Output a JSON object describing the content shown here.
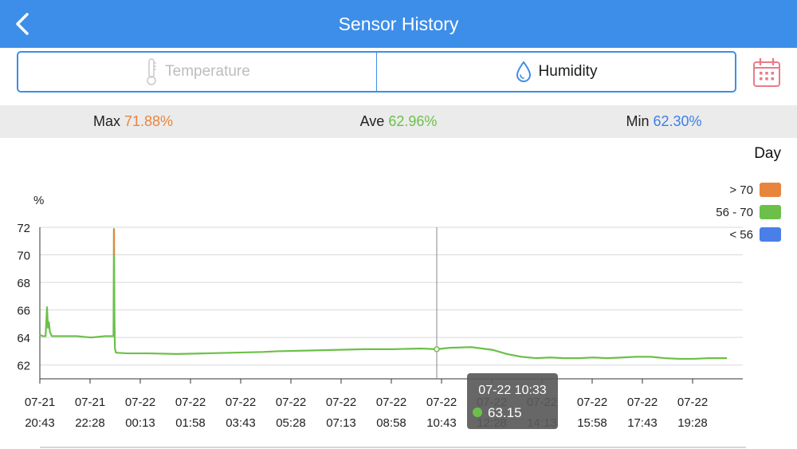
{
  "nav": {
    "title": "Sensor History"
  },
  "tabs": [
    {
      "label": "Temperature",
      "icon": "thermometer-icon",
      "active": false
    },
    {
      "label": "Humidity",
      "icon": "water-drop-icon",
      "active": true
    }
  ],
  "calendar_icon": "calendar-icon",
  "stats": {
    "max": {
      "label": "Max",
      "value": "71.88%",
      "color": "#e8853d"
    },
    "ave": {
      "label": "Ave",
      "value": "62.96%",
      "color": "#6cc04a"
    },
    "min": {
      "label": "Min",
      "value": "62.30%",
      "color": "#3d7fe8"
    }
  },
  "period": "Day",
  "legend": [
    {
      "label": "> 70",
      "color": "#e8853d"
    },
    {
      "label": "56 - 70",
      "color": "#6cc04a"
    },
    {
      "label": "< 56",
      "color": "#4a7fe8"
    }
  ],
  "tooltip": {
    "time": "07-22 10:33",
    "value": "63.15",
    "color": "#6cc04a"
  },
  "chart_data": {
    "type": "line",
    "ylabel": "%",
    "ylim": [
      61,
      72
    ],
    "yticks": [
      62,
      64,
      66,
      68,
      70,
      72
    ],
    "x_start": "07-21 20:43",
    "x_ticks": [
      {
        "date": "07-21",
        "time": "20:43"
      },
      {
        "date": "07-21",
        "time": "22:28"
      },
      {
        "date": "07-22",
        "time": "00:13"
      },
      {
        "date": "07-22",
        "time": "01:58"
      },
      {
        "date": "07-22",
        "time": "03:43"
      },
      {
        "date": "07-22",
        "time": "05:28"
      },
      {
        "date": "07-22",
        "time": "07:13"
      },
      {
        "date": "07-22",
        "time": "08:58"
      },
      {
        "date": "07-22",
        "time": "10:43"
      },
      {
        "date": "07-22",
        "time": "12:28"
      },
      {
        "date": "07-22",
        "time": "14:13"
      },
      {
        "date": "07-22",
        "time": "15:58"
      },
      {
        "date": "07-22",
        "time": "17:43"
      },
      {
        "date": "07-22",
        "time": "19:28"
      }
    ],
    "grid": true,
    "legend_position": "top-right",
    "cursor_x": "07-22 10:33",
    "series": [
      {
        "points": [
          [
            "07-21 20:43",
            64.2
          ],
          [
            "07-21 20:49",
            64.1
          ],
          [
            "07-21 20:55",
            64.1
          ],
          [
            "07-21 20:58",
            66.2
          ],
          [
            "07-21 21:00",
            64.7
          ],
          [
            "07-21 21:02",
            65.1
          ],
          [
            "07-21 21:04",
            64.4
          ],
          [
            "07-21 21:08",
            64.1
          ],
          [
            "07-21 21:30",
            64.1
          ],
          [
            "07-21 22:00",
            64.1
          ],
          [
            "07-21 22:30",
            64.0
          ],
          [
            "07-21 23:00",
            64.1
          ],
          [
            "07-21 23:17",
            64.1
          ],
          [
            "07-21 23:18",
            71.88
          ],
          [
            "07-21 23:19",
            65.5
          ],
          [
            "07-21 23:20",
            63.2
          ],
          [
            "07-21 23:22",
            62.9
          ],
          [
            "07-21 23:45",
            62.85
          ],
          [
            "07-22 00:30",
            62.85
          ],
          [
            "07-22 01:30",
            62.8
          ],
          [
            "07-22 02:30",
            62.85
          ],
          [
            "07-22 03:30",
            62.9
          ],
          [
            "07-22 04:30",
            62.95
          ],
          [
            "07-22 05:00",
            63.0
          ],
          [
            "07-22 06:00",
            63.05
          ],
          [
            "07-22 07:00",
            63.1
          ],
          [
            "07-22 08:00",
            63.15
          ],
          [
            "07-22 09:00",
            63.15
          ],
          [
            "07-22 10:00",
            63.2
          ],
          [
            "07-22 10:33",
            63.15
          ],
          [
            "07-22 11:00",
            63.25
          ],
          [
            "07-22 11:45",
            63.3
          ],
          [
            "07-22 12:30",
            63.1
          ],
          [
            "07-22 13:00",
            62.8
          ],
          [
            "07-22 13:30",
            62.6
          ],
          [
            "07-22 14:00",
            62.5
          ],
          [
            "07-22 14:30",
            62.55
          ],
          [
            "07-22 15:00",
            62.5
          ],
          [
            "07-22 15:30",
            62.5
          ],
          [
            "07-22 16:00",
            62.55
          ],
          [
            "07-22 16:30",
            62.5
          ],
          [
            "07-22 17:00",
            62.55
          ],
          [
            "07-22 17:30",
            62.6
          ],
          [
            "07-22 18:00",
            62.6
          ],
          [
            "07-22 18:30",
            62.5
          ],
          [
            "07-22 19:00",
            62.45
          ],
          [
            "07-22 19:30",
            62.45
          ],
          [
            "07-22 20:00",
            62.5
          ],
          [
            "07-22 20:40",
            62.5
          ]
        ]
      }
    ]
  }
}
